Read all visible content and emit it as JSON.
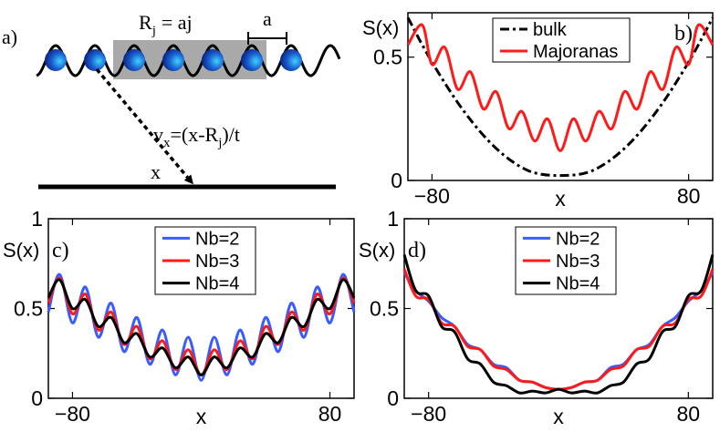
{
  "colors": {
    "blue": "#3a5bff",
    "red": "#ff1a1a",
    "black": "#000000",
    "box": "#9a9a9a",
    "ball_dark": "#0a2a8a",
    "ball_light": "#3fd0ff"
  },
  "panel_a": {
    "label": "a)",
    "rj": "R",
    "rj_sub": "j",
    "rj_eq": "= aj",
    "lattice": "a",
    "vx": "v",
    "vx_sub": "x",
    "vx_eq1": "=(x-R",
    "vx_sub2": "j",
    "vx_eq2": ")/t",
    "xlabel": "x"
  },
  "chart_data": [
    {
      "panel": "b)",
      "type": "line",
      "ylabel": "S(x)",
      "xlabel": "x",
      "xlim": [
        -95,
        95
      ],
      "ylim": [
        0,
        0.68
      ],
      "xticks": [
        -80,
        80
      ],
      "yticks": [
        0,
        0.5
      ],
      "yticklabels": [
        "0",
        "0.5"
      ],
      "legend_position": "top-right",
      "series": [
        {
          "name": "bulk",
          "color": "black",
          "style": "dashdot",
          "x": [
            -95,
            -80,
            -60,
            -40,
            -20,
            0,
            20,
            40,
            60,
            80,
            95
          ],
          "y": [
            0.66,
            0.48,
            0.28,
            0.13,
            0.04,
            0.02,
            0.04,
            0.13,
            0.28,
            0.48,
            0.66
          ]
        },
        {
          "name": "Majoranas",
          "color": "red",
          "style": "solid",
          "x": [
            -95,
            -86,
            -80,
            -72,
            -64,
            -56,
            -48,
            -40,
            -32,
            -24,
            -16,
            -8,
            0,
            8,
            16,
            24,
            32,
            40,
            48,
            56,
            64,
            72,
            80,
            86,
            95
          ],
          "y": [
            0.55,
            0.63,
            0.47,
            0.54,
            0.37,
            0.44,
            0.29,
            0.36,
            0.21,
            0.28,
            0.16,
            0.25,
            0.12,
            0.25,
            0.16,
            0.28,
            0.21,
            0.36,
            0.29,
            0.44,
            0.37,
            0.54,
            0.47,
            0.63,
            0.55
          ]
        }
      ]
    },
    {
      "panel": "c)",
      "type": "line",
      "ylabel": "S(x)",
      "xlabel": "x",
      "xlim": [
        -95,
        95
      ],
      "ylim": [
        0,
        1
      ],
      "xticks": [
        -80,
        80
      ],
      "yticks": [
        0,
        0.5,
        1
      ],
      "yticklabels": [
        "0",
        "0.5",
        "1"
      ],
      "legend_position": "top-center",
      "series": [
        {
          "name": "Nb=2",
          "color": "blue",
          "x": [
            -95,
            -88,
            -80,
            -72,
            -64,
            -56,
            -48,
            -40,
            -32,
            -24,
            -16,
            -8,
            0,
            8,
            16,
            24,
            32,
            40,
            48,
            56,
            64,
            72,
            80,
            88,
            95
          ],
          "y": [
            0.48,
            0.69,
            0.42,
            0.62,
            0.34,
            0.53,
            0.26,
            0.45,
            0.19,
            0.38,
            0.13,
            0.34,
            0.1,
            0.34,
            0.13,
            0.38,
            0.19,
            0.45,
            0.26,
            0.53,
            0.34,
            0.62,
            0.42,
            0.69,
            0.48
          ]
        },
        {
          "name": "Nb=3",
          "color": "red",
          "x": [
            -95,
            -88,
            -80,
            -72,
            -64,
            -56,
            -48,
            -40,
            -32,
            -24,
            -16,
            -8,
            0,
            8,
            16,
            24,
            32,
            40,
            48,
            56,
            64,
            72,
            80,
            88,
            95
          ],
          "y": [
            0.53,
            0.67,
            0.47,
            0.58,
            0.38,
            0.48,
            0.3,
            0.4,
            0.22,
            0.32,
            0.16,
            0.27,
            0.13,
            0.27,
            0.16,
            0.32,
            0.22,
            0.4,
            0.3,
            0.48,
            0.38,
            0.58,
            0.47,
            0.67,
            0.53
          ]
        },
        {
          "name": "Nb=4",
          "color": "black",
          "x": [
            -95,
            -88,
            -80,
            -72,
            -64,
            -56,
            -48,
            -40,
            -32,
            -24,
            -16,
            -8,
            0,
            8,
            16,
            24,
            32,
            40,
            48,
            56,
            64,
            72,
            80,
            88,
            95
          ],
          "y": [
            0.56,
            0.66,
            0.5,
            0.55,
            0.4,
            0.45,
            0.31,
            0.36,
            0.23,
            0.28,
            0.17,
            0.23,
            0.13,
            0.23,
            0.17,
            0.28,
            0.23,
            0.36,
            0.31,
            0.45,
            0.4,
            0.55,
            0.5,
            0.66,
            0.56
          ]
        }
      ]
    },
    {
      "panel": "d)",
      "type": "line",
      "ylabel": "S(x)",
      "xlabel": "x",
      "xlim": [
        -95,
        95
      ],
      "ylim": [
        0,
        1
      ],
      "xticks": [
        -80,
        80
      ],
      "yticks": [
        0,
        0.5,
        1
      ],
      "yticklabels": [
        "0",
        "0.5",
        "1"
      ],
      "legend_position": "top-center",
      "series": [
        {
          "name": "Nb=2",
          "color": "blue",
          "x": [
            -95,
            -88,
            -80,
            -72,
            -64,
            -56,
            -48,
            -40,
            -32,
            -24,
            -16,
            -8,
            0,
            8,
            16,
            24,
            32,
            40,
            48,
            56,
            64,
            72,
            80,
            88,
            95
          ],
          "y": [
            0.7,
            0.6,
            0.54,
            0.45,
            0.4,
            0.3,
            0.27,
            0.19,
            0.17,
            0.1,
            0.09,
            0.06,
            0.05,
            0.06,
            0.09,
            0.1,
            0.17,
            0.19,
            0.27,
            0.3,
            0.4,
            0.45,
            0.54,
            0.6,
            0.7
          ]
        },
        {
          "name": "Nb=3",
          "color": "red",
          "x": [
            -95,
            -88,
            -80,
            -72,
            -64,
            -56,
            -48,
            -40,
            -32,
            -24,
            -16,
            -8,
            0,
            8,
            16,
            24,
            32,
            40,
            48,
            56,
            64,
            72,
            80,
            88,
            95
          ],
          "y": [
            0.72,
            0.57,
            0.55,
            0.42,
            0.4,
            0.29,
            0.27,
            0.18,
            0.16,
            0.1,
            0.09,
            0.06,
            0.05,
            0.06,
            0.09,
            0.1,
            0.16,
            0.18,
            0.27,
            0.29,
            0.4,
            0.42,
            0.55,
            0.57,
            0.72
          ]
        },
        {
          "name": "Nb=4",
          "color": "black",
          "x": [
            -95,
            -88,
            -80,
            -72,
            -64,
            -56,
            -48,
            -40,
            -32,
            -24,
            -16,
            -8,
            0,
            8,
            16,
            24,
            32,
            40,
            48,
            56,
            64,
            72,
            80,
            88,
            95
          ],
          "y": [
            0.8,
            0.6,
            0.57,
            0.4,
            0.37,
            0.22,
            0.19,
            0.09,
            0.07,
            0.03,
            0.04,
            0.03,
            0.05,
            0.03,
            0.04,
            0.03,
            0.07,
            0.09,
            0.19,
            0.22,
            0.37,
            0.4,
            0.57,
            0.6,
            0.8
          ]
        }
      ]
    }
  ]
}
